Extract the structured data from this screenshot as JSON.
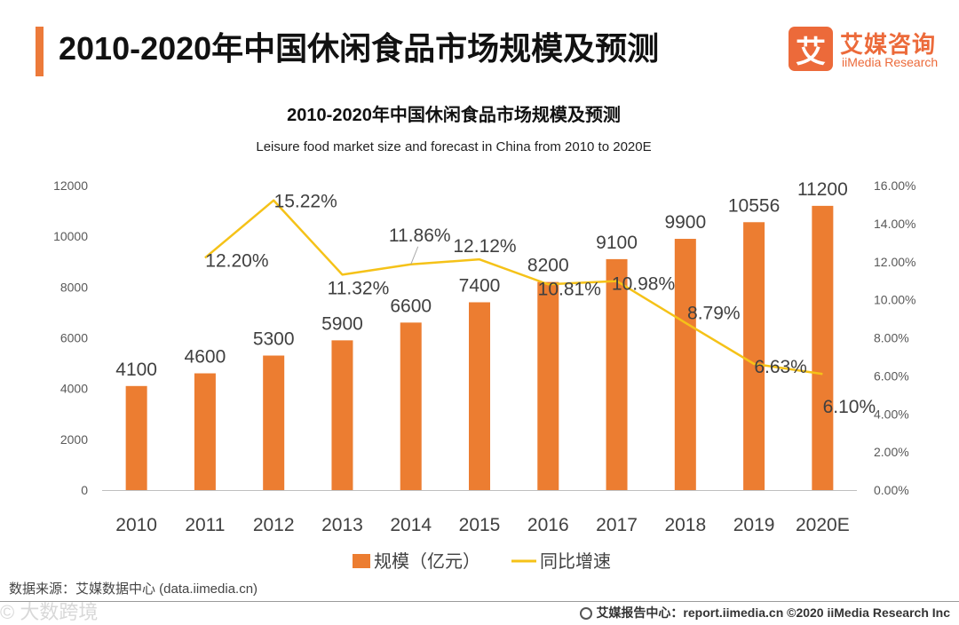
{
  "header": {
    "title": "2010-2020年中国休闲食品市场规模及预测",
    "logo_mark": "艾",
    "logo_cn": "艾媒咨询",
    "logo_en": "iiMedia Research"
  },
  "chart_data": {
    "type": "bar",
    "title": "2010-2020年中国休闲食品市场规模及预测",
    "subtitle": "Leisure food market size and forecast in China from 2010 to 2020E",
    "categories": [
      "2010",
      "2011",
      "2012",
      "2013",
      "2014",
      "2015",
      "2016",
      "2017",
      "2018",
      "2019",
      "2020E"
    ],
    "series": [
      {
        "name": "规模（亿元）",
        "type": "bar",
        "axis": "left",
        "color": "#ec7d31",
        "values": [
          4100,
          4600,
          5300,
          5900,
          6600,
          7400,
          8200,
          9100,
          9900,
          10556,
          11200
        ],
        "labels": [
          "4100",
          "4600",
          "5300",
          "5900",
          "6600",
          "7400",
          "8200",
          "9100",
          "9900",
          "10556",
          "11200"
        ]
      },
      {
        "name": "同比增速",
        "type": "line",
        "axis": "right",
        "color": "#f5c218",
        "values": [
          null,
          12.2,
          15.22,
          11.32,
          11.86,
          12.12,
          10.81,
          10.98,
          8.79,
          6.63,
          6.1
        ],
        "labels": [
          "",
          "12.20%",
          "15.22%",
          "11.32%",
          "11.86%",
          "12.12%",
          "10.81%",
          "10.98%",
          "8.79%",
          "6.63%",
          "6.10%"
        ]
      }
    ],
    "y_left": {
      "min": 0,
      "max": 12000,
      "ticks": [
        "0",
        "2000",
        "4000",
        "6000",
        "8000",
        "10000",
        "12000"
      ]
    },
    "y_right": {
      "min": 0,
      "max": 16,
      "ticks": [
        "0.00%",
        "2.00%",
        "4.00%",
        "6.00%",
        "8.00%",
        "10.00%",
        "12.00%",
        "14.00%",
        "16.00%"
      ]
    },
    "legend": {
      "position": "bottom",
      "items": [
        "规模（亿元）",
        "同比增速"
      ]
    },
    "grid": false
  },
  "footer": {
    "source": "数据来源：艾媒数据中心 (data.iimedia.cn)",
    "watermark": "© 大数跨境",
    "right": "艾媒报告中心：report.iimedia.cn  ©2020  iiMedia Research  Inc"
  }
}
